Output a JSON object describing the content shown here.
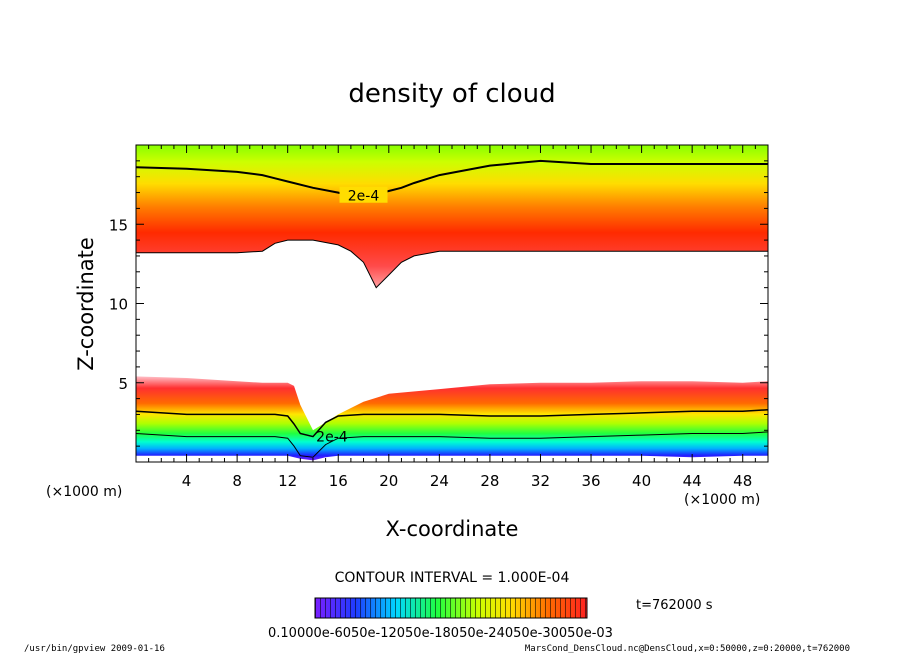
{
  "chart_data": {
    "type": "heatmap",
    "title": "density of cloud",
    "xlabel": "X-coordinate",
    "ylabel": "Z-coordinate",
    "x_unit_label": "(×1000 m)",
    "z_unit_label": "(×1000 m)",
    "xlim": [
      0,
      50
    ],
    "ylim": [
      0,
      20
    ],
    "x_ticks": [
      4,
      8,
      12,
      16,
      20,
      24,
      28,
      32,
      36,
      40,
      44,
      48
    ],
    "y_ticks": [
      5,
      10,
      15
    ],
    "contour_interval_text": "CONTOUR INTERVAL = 1.000E-04",
    "contour_labels": [
      "2e-4",
      "2e-4"
    ],
    "time_text": "t=762000 s",
    "colorbar_range": [
      0.0001,
      0.0007
    ],
    "colorbar_label_text": "0.10000e-6050e-12050e-18050e-24050e-30050e-03",
    "footer_left": "/usr/bin/gpview   2009-01-16",
    "footer_right": "MarsCond_DensCloud.nc@DensCloud,x=0:50000,z=0:20000,t=762000",
    "upper_layer": {
      "x": [
        0,
        4,
        8,
        10,
        11,
        12,
        14,
        16,
        17,
        18,
        19,
        20,
        21,
        22,
        24,
        28,
        32,
        36,
        40,
        44,
        48,
        50
      ],
      "bottom_z": [
        13.2,
        13.2,
        13.2,
        13.3,
        13.8,
        14.0,
        14.0,
        13.7,
        13.3,
        12.6,
        11.0,
        11.8,
        12.6,
        13.0,
        13.3,
        13.3,
        13.3,
        13.3,
        13.3,
        13.3,
        13.3,
        13.3
      ],
      "contour_2e4_z": [
        18.6,
        18.5,
        18.3,
        18.1,
        17.9,
        17.7,
        17.3,
        17.0,
        16.8,
        16.8,
        16.9,
        17.1,
        17.3,
        17.6,
        18.1,
        18.7,
        19.0,
        18.8,
        18.8,
        18.8,
        18.8,
        18.8
      ]
    },
    "lower_layer": {
      "x": [
        0,
        4,
        8,
        10,
        11,
        12,
        12.5,
        13,
        14,
        15,
        16,
        18,
        20,
        24,
        28,
        32,
        36,
        40,
        44,
        48,
        50
      ],
      "top_z": [
        5.4,
        5.3,
        5.1,
        5.0,
        5.0,
        5.0,
        4.8,
        3.6,
        2.0,
        2.5,
        3.0,
        3.8,
        4.3,
        4.6,
        4.9,
        5.0,
        5.0,
        5.1,
        5.1,
        5.0,
        5.1
      ],
      "contour_2e4_z": [
        3.2,
        3.0,
        3.0,
        3.0,
        3.0,
        2.9,
        2.4,
        1.8,
        1.6,
        2.5,
        2.9,
        3.0,
        3.0,
        3.0,
        2.9,
        2.9,
        3.0,
        3.1,
        3.2,
        3.2,
        3.3
      ],
      "bottom_z": [
        0.4,
        0.4,
        0.4,
        0.4,
        0.4,
        0.4,
        0.3,
        0.2,
        0.1,
        0.3,
        0.4,
        0.4,
        0.4,
        0.4,
        0.4,
        0.4,
        0.4,
        0.4,
        0.3,
        0.4,
        0.4
      ]
    },
    "colors": {
      "green": "#7fff00",
      "yellow": "#ffff00",
      "orange": "#ff8c00",
      "red": "#ff0000",
      "cyan": "#00ffff",
      "blue": "#1e3cff",
      "purple": "#7a1fff",
      "contour": "#000000"
    }
  }
}
